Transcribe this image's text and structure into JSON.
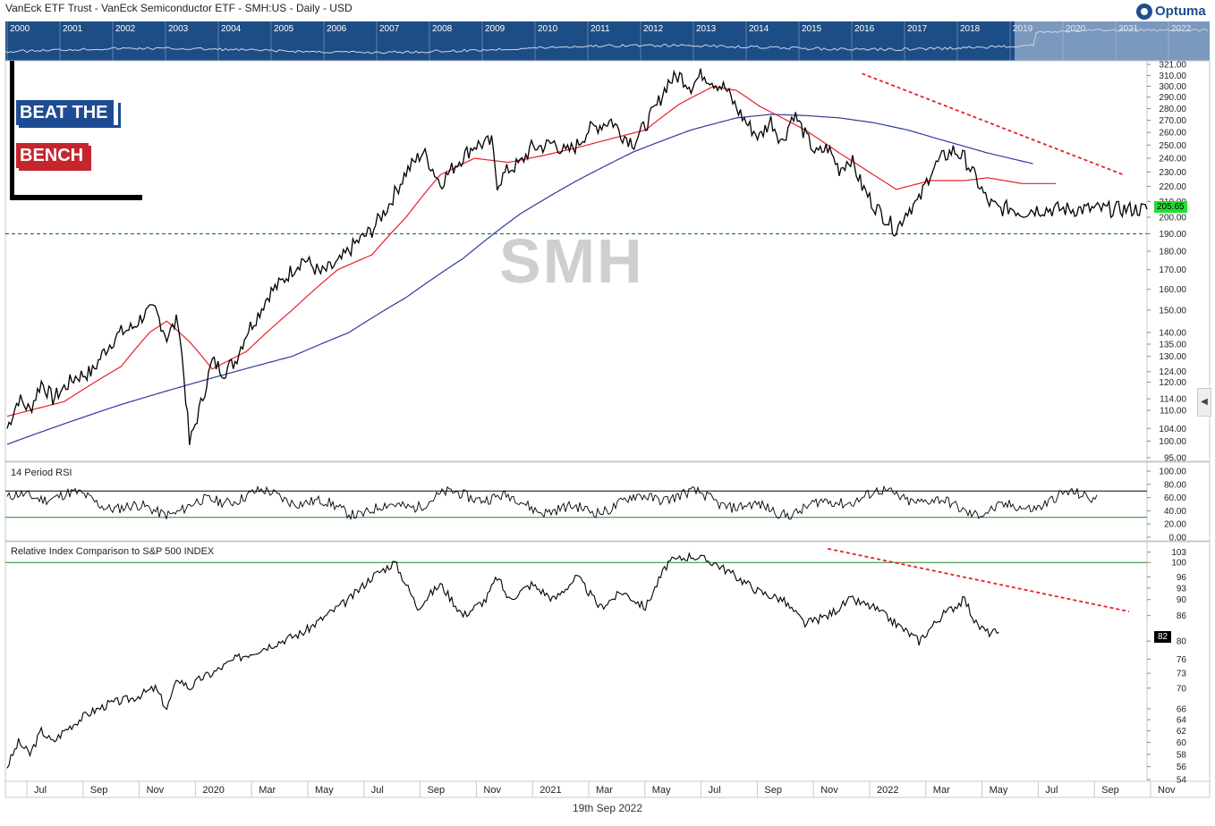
{
  "header": {
    "title": "VanEck ETF Trust - VanEck Semiconductor ETF - SMH:US - Daily - USD",
    "logo_text": "Optuma"
  },
  "brand": {
    "line1": "BEAT THE",
    "line2": "BENCH",
    "blue": "#1e4c94",
    "red": "#c5262e"
  },
  "navigator": {
    "years": [
      "2000",
      "2001",
      "2002",
      "2003",
      "2004",
      "2005",
      "2006",
      "2007",
      "2008",
      "2009",
      "2010",
      "2011",
      "2012",
      "2013",
      "2014",
      "2015",
      "2016",
      "2017",
      "2018",
      "2019",
      "2020",
      "2021",
      "2022"
    ]
  },
  "watermark": "SMH",
  "footer_date": "19th Sep 2022",
  "colors": {
    "price": "#000000",
    "ma50": "#e8202a",
    "ma200": "#2e3a9c",
    "support": "#1a8a2a",
    "trendline": "#e8202a",
    "rsi_upper": "#000000",
    "rsi_lower": "#1a8a2a",
    "last_price_bg": "#22dd33"
  },
  "chart_data": [
    {
      "type": "line",
      "panel": "price",
      "x": [
        "Jul",
        "Sep",
        "Nov",
        "2020",
        "Mar",
        "May",
        "Jul",
        "Sep",
        "Nov",
        "2021",
        "Mar",
        "May",
        "Jul",
        "Sep",
        "Nov",
        "2022",
        "Mar",
        "May",
        "Jul",
        "Sep",
        "Nov"
      ],
      "y_ticks": [
        95,
        100,
        104,
        110,
        114,
        120,
        124,
        130,
        135,
        140,
        150,
        160,
        170,
        180,
        190,
        200,
        210,
        220,
        230,
        240,
        250,
        260,
        270,
        280,
        290,
        300,
        310,
        321
      ],
      "y_tick_labels": [
        "95.00",
        "100.00",
        "104.00",
        "110.00",
        "114.00",
        "120.00",
        "124.00",
        "130.00",
        "135.00",
        "140.00",
        "150.00",
        "160.00",
        "170.00",
        "180.00",
        "190.00",
        "200.00",
        "210.00",
        "220.00",
        "230.00",
        "240.00",
        "250.00",
        "260.00",
        "270.00",
        "280.00",
        "290.00",
        "300.00",
        "310.00",
        "321.00"
      ],
      "ylim": [
        95,
        321
      ],
      "log_scale": true,
      "last_value_label": "205.65",
      "support_level": 190,
      "series": [
        {
          "key": "price",
          "x": [
            0,
            2,
            4,
            6,
            8,
            10,
            12,
            15,
            17,
            19,
            20,
            22,
            24,
            26,
            28,
            30,
            32,
            34,
            36,
            38,
            40,
            42,
            44,
            46,
            48,
            50,
            52,
            55,
            58,
            61,
            64,
            67,
            70,
            73,
            76,
            79,
            82,
            85,
            86,
            88,
            90,
            92,
            94,
            96,
            98,
            100,
            102,
            104,
            106,
            108,
            110,
            112,
            114,
            116,
            118,
            120,
            122,
            124,
            126,
            128,
            130,
            132,
            134,
            136,
            138,
            140,
            142,
            144,
            146,
            148,
            150,
            152,
            154,
            156,
            158,
            160,
            162,
            164,
            166,
            168,
            170,
            172,
            174,
            176,
            178,
            180,
            182,
            184,
            186,
            188,
            190,
            192,
            194,
            196,
            198,
            200
          ],
          "y": [
            104,
            114,
            110,
            120,
            114,
            118,
            122,
            124,
            132,
            138,
            140,
            142,
            148,
            150,
            138,
            146,
            99,
            112,
            128,
            124,
            128,
            140,
            148,
            158,
            163,
            170,
            176,
            168,
            173,
            184,
            192,
            208,
            230,
            245,
            222,
            237,
            250,
            252,
            222,
            232,
            236,
            248,
            249,
            252,
            244,
            250,
            262,
            266,
            270,
            258,
            252,
            266,
            282,
            304,
            310,
            300,
            312,
            304,
            298,
            280,
            266,
            256,
            270,
            252,
            276,
            258,
            243,
            248,
            232,
            240,
            220,
            208,
            200,
            192,
            205,
            210,
            230,
            240,
            246,
            240,
            225,
            210,
            205,
            206,
            203,
            205,
            205,
            205,
            205,
            205,
            205,
            205,
            205,
            205,
            205,
            205
          ]
        },
        {
          "key": "ma50",
          "x": [
            0,
            10,
            20,
            25,
            28,
            32,
            36,
            42,
            50,
            58,
            64,
            70,
            76,
            82,
            88,
            94,
            100,
            106,
            112,
            118,
            124,
            128,
            132,
            140,
            146,
            152,
            156,
            162,
            168,
            172,
            178,
            184
          ],
          "y": [
            108,
            113,
            126,
            140,
            145,
            136,
            125,
            132,
            150,
            170,
            178,
            200,
            228,
            240,
            237,
            242,
            248,
            255,
            262,
            284,
            300,
            296,
            282,
            262,
            244,
            228,
            218,
            224,
            224,
            226,
            222,
            222
          ]
        },
        {
          "key": "ma200",
          "x": [
            0,
            20,
            40,
            50,
            60,
            70,
            80,
            90,
            100,
            110,
            120,
            128,
            134,
            140,
            146,
            152,
            158,
            164,
            172,
            180
          ],
          "y": [
            99,
            112,
            124,
            130,
            140,
            156,
            176,
            202,
            224,
            245,
            262,
            272,
            275,
            274,
            272,
            268,
            262,
            254,
            244,
            236
          ]
        }
      ]
    },
    {
      "type": "line",
      "panel": "rsi",
      "title": "14 Period RSI",
      "y_ticks": [
        0,
        20,
        40,
        60,
        80,
        100
      ],
      "y_tick_labels": [
        "0.00",
        "20.00",
        "40.00",
        "60.00",
        "80.00",
        "100.00"
      ],
      "ylim": [
        0,
        100
      ],
      "upper_band": 70,
      "lower_band": 30
    },
    {
      "type": "line",
      "panel": "relative",
      "title": "Relative Index Comparison to S&P 500 INDEX",
      "y_ticks": [
        54,
        56,
        58,
        60,
        62,
        64,
        66,
        70,
        73,
        76,
        80,
        86,
        90,
        93,
        96,
        100,
        103
      ],
      "y_tick_labels": [
        "54",
        "56",
        "58",
        "60",
        "62",
        "64",
        "66",
        "70",
        "73",
        "76",
        "80",
        "86",
        "90",
        "93",
        "96",
        "100",
        "103"
      ],
      "ylim": [
        54,
        105
      ],
      "log_scale": true,
      "last_value_label": "82",
      "reference_level": 100,
      "series": [
        {
          "key": "relative",
          "x": [
            0,
            2,
            4,
            6,
            8,
            10,
            14,
            18,
            22,
            26,
            28,
            30,
            32,
            34,
            36,
            40,
            44,
            48,
            52,
            56,
            60,
            64,
            68,
            72,
            76,
            80,
            84,
            86,
            88,
            92,
            96,
            100,
            104,
            108,
            112,
            116,
            120,
            124,
            128,
            132,
            136,
            140,
            144,
            148,
            152,
            156,
            160,
            164,
            168,
            170,
            172,
            174
          ],
          "y": [
            56,
            60,
            58,
            62,
            60,
            62,
            65,
            67,
            68,
            70,
            66,
            72,
            70,
            72,
            73,
            76,
            78,
            80,
            82,
            86,
            90,
            96,
            100,
            88,
            94,
            86,
            90,
            96,
            90,
            94,
            90,
            96,
            88,
            92,
            88,
            100,
            102,
            100,
            96,
            92,
            90,
            84,
            86,
            90,
            88,
            84,
            80,
            86,
            90,
            84,
            82,
            82
          ]
        }
      ]
    }
  ]
}
